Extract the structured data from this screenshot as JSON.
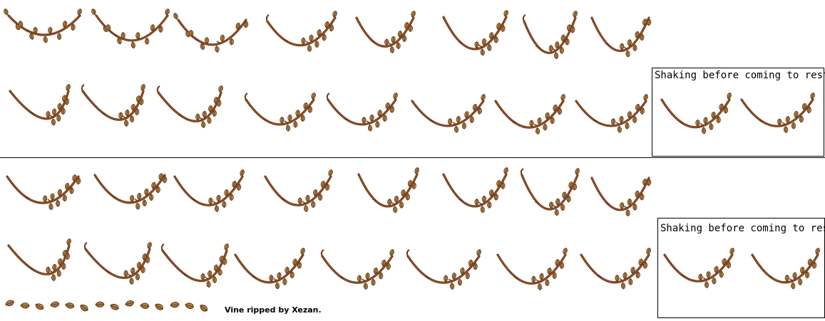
{
  "labels": {
    "shaking_top": "Shaking before coming to rest",
    "shaking_bottom": "Shaking before coming to rest",
    "credit": "Vine ripped by Xezan."
  },
  "colors": {
    "vine": "#6e3a1c",
    "vine_highlight": "#a0582a",
    "leaf": "#a8763c",
    "leaf_dark": "#5a3416",
    "leaf_light": "#c99a5a"
  }
}
